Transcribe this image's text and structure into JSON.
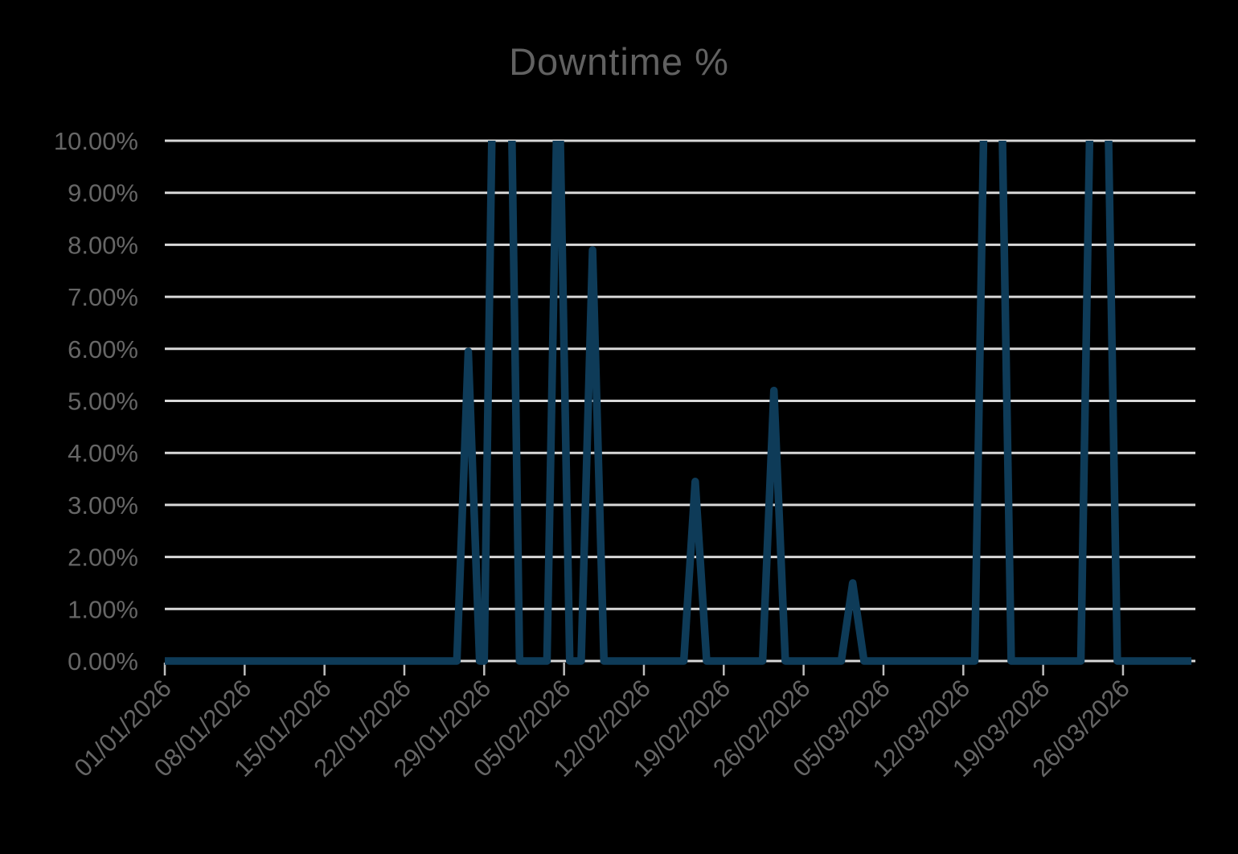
{
  "title": "Downtime %",
  "colors": {
    "background": "#000000",
    "line": "#0E3B58",
    "gridline": "#D9D9D9",
    "axis_tick": "#BFBFBF",
    "axis_label": "#666666",
    "title_text": "#616161"
  },
  "chart_data": {
    "type": "line",
    "title": "Downtime %",
    "legend": false,
    "grid": true,
    "y_axis": {
      "min": 0,
      "max": 10,
      "unit": "%",
      "tick_labels": [
        "0.00%",
        "1.00%",
        "2.00%",
        "3.00%",
        "4.00%",
        "5.00%",
        "6.00%",
        "7.00%",
        "8.00%",
        "9.00%",
        "10.00%"
      ]
    },
    "x_axis": {
      "start_date": "01/01/2026",
      "tick_interval_days": 7,
      "span_days": 90,
      "tick_labels": [
        "01/01/2026",
        "08/01/2026",
        "15/01/2026",
        "22/01/2026",
        "29/01/2026",
        "05/02/2026",
        "12/02/2026",
        "19/02/2026",
        "26/02/2026",
        "05/03/2026",
        "12/03/2026",
        "19/03/2026",
        "26/03/2026"
      ]
    },
    "series": [
      {
        "name": "Downtime %",
        "baseline_value_pct": 0,
        "spikes": [
          {
            "date": "28/01/2026",
            "peak_pct": 5.95,
            "clipped_at_axis_max": false
          },
          {
            "date": "30/01/2026",
            "peak_pct": 10,
            "clipped_at_axis_max": true
          },
          {
            "date": "31/01/2026",
            "peak_pct": 10,
            "clipped_at_axis_max": true
          },
          {
            "date": "04/02/2026",
            "peak_pct": 10,
            "clipped_at_axis_max": true
          },
          {
            "date": "07/02/2026",
            "peak_pct": 7.9,
            "clipped_at_axis_max": false
          },
          {
            "date": "16/02/2026",
            "peak_pct": 3.45,
            "clipped_at_axis_max": false
          },
          {
            "date": "23/02/2026",
            "peak_pct": 5.2,
            "clipped_at_axis_max": false
          },
          {
            "date": "02/03/2026",
            "peak_pct": 1.5,
            "clipped_at_axis_max": false
          },
          {
            "date": "14/03/2026",
            "peak_pct": 10,
            "clipped_at_axis_max": true
          },
          {
            "date": "15/03/2026",
            "peak_pct": 10,
            "clipped_at_axis_max": true
          },
          {
            "date": "23/03/2026",
            "peak_pct": 10,
            "clipped_at_axis_max": true
          },
          {
            "date": "24/03/2026",
            "peak_pct": 10,
            "clipped_at_axis_max": true
          }
        ],
        "points_day_pct": [
          [
            0,
            0
          ],
          [
            25.6,
            0
          ],
          [
            26.6,
            5.95
          ],
          [
            27.6,
            0
          ],
          [
            28.0,
            0
          ],
          [
            29.0,
            15
          ],
          [
            30.1,
            15
          ],
          [
            31.1,
            0
          ],
          [
            33.5,
            0
          ],
          [
            34.5,
            12
          ],
          [
            35.5,
            0
          ],
          [
            36.5,
            0
          ],
          [
            37.5,
            7.9
          ],
          [
            38.5,
            0
          ],
          [
            45.5,
            0
          ],
          [
            46.5,
            3.45
          ],
          [
            47.5,
            0
          ],
          [
            52.4,
            0
          ],
          [
            53.4,
            5.2
          ],
          [
            54.4,
            0
          ],
          [
            59.3,
            0
          ],
          [
            60.3,
            1.5
          ],
          [
            61.3,
            0
          ],
          [
            71.0,
            0
          ],
          [
            72.0,
            13
          ],
          [
            73.2,
            13
          ],
          [
            74.2,
            0
          ],
          [
            80.3,
            0
          ],
          [
            81.3,
            13
          ],
          [
            82.5,
            13
          ],
          [
            83.5,
            0
          ],
          [
            90,
            0
          ]
        ]
      }
    ]
  }
}
